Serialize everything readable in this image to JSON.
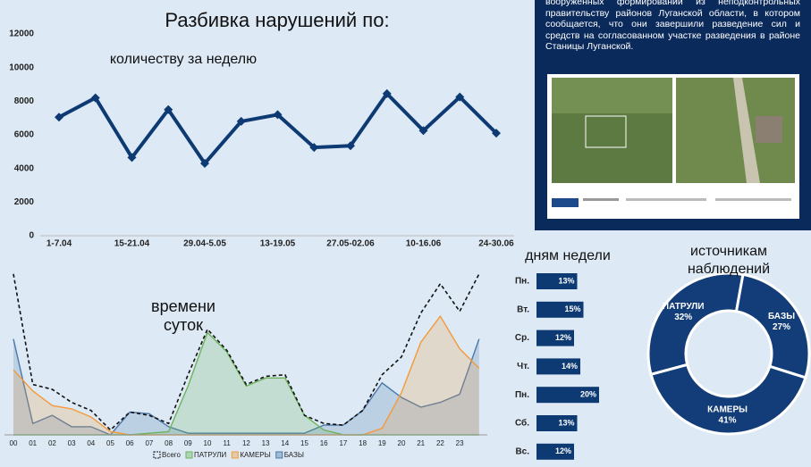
{
  "title": "Разбивка нарушений по:",
  "article": "вооруженных формирований из неподконтрольных правительству районов Луганской области, в котором сообщается, что они завершили разведение сил и средств на согласованном участке разведения в районе Станицы Луганской.",
  "chart_data": [
    {
      "type": "line",
      "title": "количеству за неделю",
      "color": "#0d3a73",
      "categories": [
        "1-7.04",
        null,
        "15-21.04",
        null,
        "29.04-5.05",
        null,
        "13-19.05",
        null,
        "27.05-02.06",
        null,
        "10-16.06",
        null,
        "24-30.06"
      ],
      "values": [
        7050,
        8200,
        4650,
        7500,
        4300,
        6800,
        7200,
        5250,
        5350,
        8450,
        6250,
        8250,
        6100
      ],
      "ylim": [
        0,
        12000
      ],
      "yticks": [
        0,
        2000,
        4000,
        6000,
        8000,
        10000,
        12000
      ]
    },
    {
      "type": "area",
      "title": "времени суток",
      "categories": [
        "00",
        "01",
        "02",
        "03",
        "04",
        "05",
        "06",
        "07",
        "08",
        "09",
        "10",
        "11",
        "12",
        "13",
        "14",
        "15",
        "16",
        "17",
        "18",
        "19",
        "20",
        "21",
        "22",
        "23",
        null
      ],
      "ylim": [
        0,
        100
      ],
      "series": [
        {
          "name": "Всего",
          "color": "#111111",
          "values": [
            99,
            31,
            28,
            20,
            15,
            3,
            14,
            12,
            7,
            37,
            65,
            52,
            31,
            36,
            37,
            12,
            7,
            6,
            15,
            37,
            48,
            75,
            93,
            76,
            99
          ]
        },
        {
          "name": "ПАТРУЛИ",
          "color": "#6db35a",
          "values": [
            0,
            0,
            0,
            0,
            0,
            0,
            0,
            1,
            2,
            30,
            63,
            51,
            30,
            35,
            35,
            12,
            3,
            0,
            0,
            0,
            0,
            0,
            0,
            0,
            0
          ]
        },
        {
          "name": "КАМЕРЫ",
          "color": "#f39a3a",
          "values": [
            40,
            27,
            18,
            16,
            11,
            2,
            0,
            0,
            0,
            0,
            0,
            0,
            0,
            0,
            0,
            0,
            0,
            0,
            0,
            4,
            26,
            57,
            73,
            53,
            41
          ]
        },
        {
          "name": "БАЗЫ",
          "color": "#4a78a8",
          "values": [
            59,
            7,
            12,
            5,
            5,
            0,
            14,
            13,
            5,
            1,
            1,
            1,
            1,
            1,
            1,
            1,
            6,
            6,
            15,
            32,
            23,
            17,
            20,
            25,
            59
          ]
        }
      ]
    },
    {
      "type": "hbar",
      "title": "дням недели",
      "color": "#0d3a73",
      "categories": [
        "Пн.",
        "Вт.",
        "Ср.",
        "Чт.",
        "Пн.",
        "Сб.",
        "Вс."
      ],
      "values": [
        13,
        15,
        12,
        14,
        20,
        13,
        12
      ],
      "value_labels": [
        "13%",
        "15%",
        "12%",
        "14%",
        "20%",
        "13%",
        "12%"
      ]
    },
    {
      "type": "donut",
      "title": "источникам наблюдений",
      "color": "#123d78",
      "categories": [
        "ПАТРУЛИ",
        "БАЗЫ",
        "КАМЕРЫ"
      ],
      "values": [
        32,
        27,
        41
      ],
      "value_labels": [
        "32%",
        "27%",
        "41%"
      ]
    }
  ]
}
